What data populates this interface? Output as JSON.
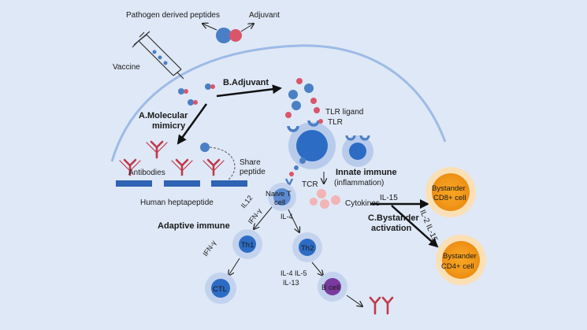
{
  "vaccine": {
    "pathogen_peptides": "Pathogen derived peptides",
    "adjuvant": "Adjuvant",
    "vaccine": "Vaccine"
  },
  "mechanisms": {
    "molecular_mimicry_line1": "A.Molecular",
    "molecular_mimicry_line2": "mimicry",
    "adjuvant": "B.Adjuvant",
    "bystander_line1": "C.Bystander",
    "bystander_line2": "activation"
  },
  "mimicry": {
    "antibodies": "Antibodies",
    "share_line1": "Share",
    "share_line2": "peptide",
    "human_heptapeptide": "Human heptapeptide"
  },
  "innate": {
    "tlr_ligand": "TLR ligand",
    "tlr": "TLR",
    "innate_immune": "Innate immune",
    "inflammation": "(inflammation)",
    "cytokines": "Cytokines",
    "tcr": "TCR"
  },
  "adaptive": {
    "adaptive_immune": "Adaptive immune",
    "naive_t_line1": "Naive T",
    "naive_t_line2": "cell",
    "il12": "IL12",
    "ifn_gamma_1": "IFN-γ",
    "il4_a": "IL-4",
    "th1": "Th1",
    "th2": "Th2",
    "ifn_gamma_2": "IFN-γ",
    "ctl": "CTL",
    "il4_il5": "IL-4 IL-5",
    "il13": "IL-13",
    "b_cell": "B cell"
  },
  "bystander": {
    "il15": "IL-15",
    "il2_il15": "IL-2 IL-15",
    "cd8_line1": "Bystander",
    "cd8_line2": "CD8+ cell",
    "cd4_line1": "Bystander",
    "cd4_line2": "CD4+  cell"
  },
  "colors": {
    "background": "#dfe8f6",
    "membrane": "#9dbbe6",
    "peptide_blue": "#4a7fc6",
    "adjuvant_red": "#d9566a",
    "antibody_red": "#c0394b",
    "heptapeptide_bar": "#2f63b3",
    "cell_blue": "#2d6cc4",
    "bystander_orange": "#f39a1d",
    "b_cell_purple": "#7a3aa0"
  }
}
